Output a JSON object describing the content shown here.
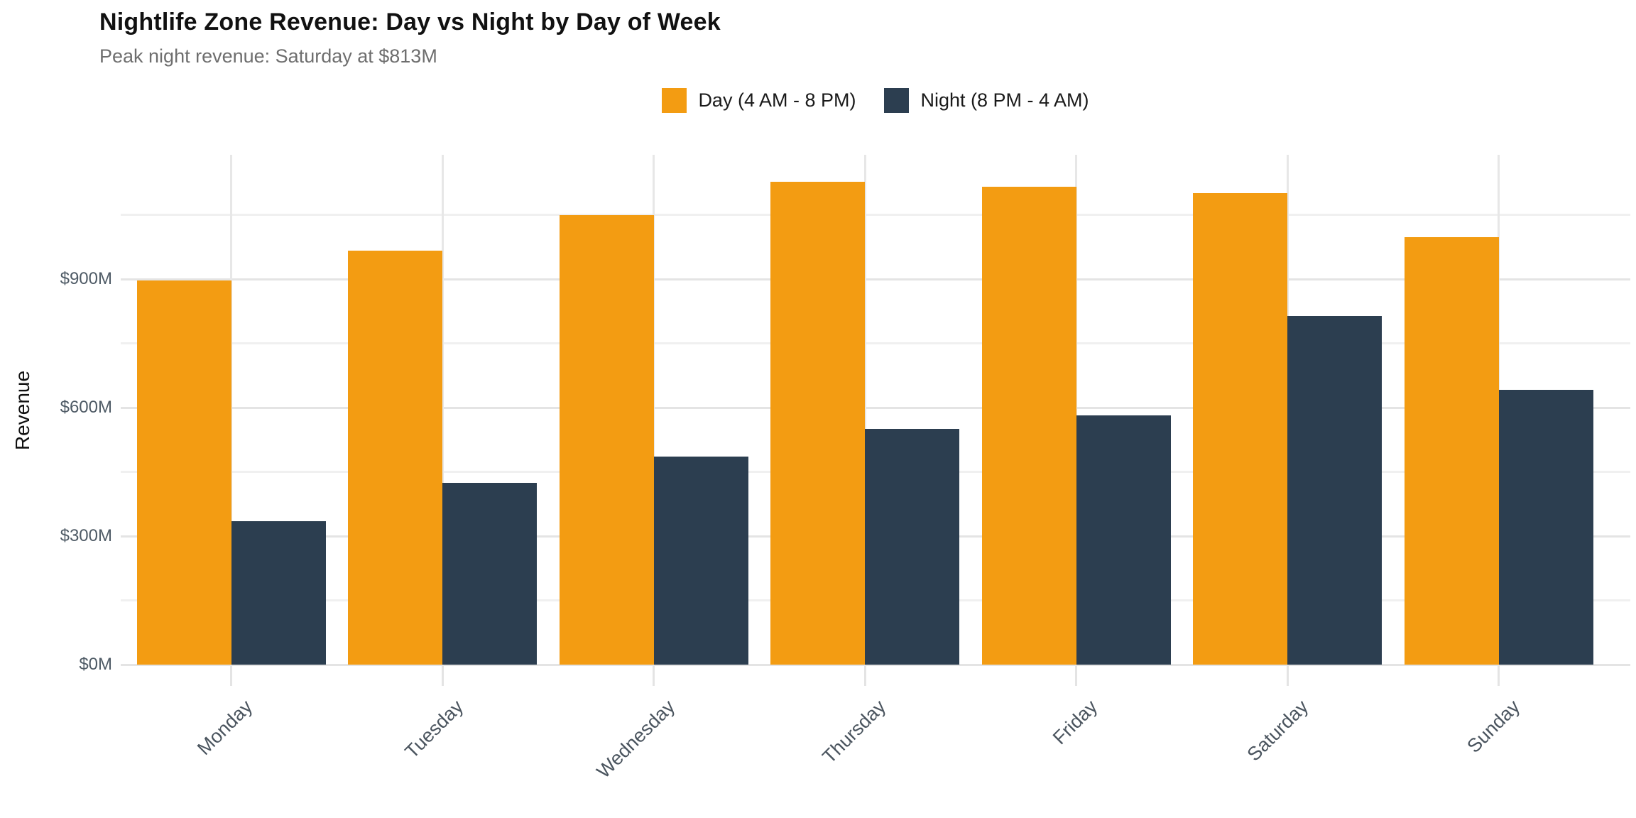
{
  "header": {
    "title": "Nightlife Zone Revenue: Day vs Night by Day of Week",
    "subtitle": "Peak night revenue: Saturday at $813M"
  },
  "chart_data": {
    "type": "bar",
    "grouping": "dodged",
    "title": "Nightlife Zone Revenue: Day vs Night by Day of Week",
    "subtitle": "Peak night revenue: Saturday at $813M",
    "categories": [
      "Monday",
      "Tuesday",
      "Wednesday",
      "Thursday",
      "Friday",
      "Saturday",
      "Sunday"
    ],
    "series": [
      {
        "name": "Day (4 AM - 8 PM)",
        "color": "#F39C12",
        "values": [
          896,
          966,
          1049,
          1127,
          1115,
          1100,
          997
        ]
      },
      {
        "name": "Night (8 PM - 4 AM)",
        "color": "#2C3E50",
        "values": [
          334,
          425,
          486,
          550,
          582,
          813,
          642
        ]
      }
    ],
    "value_unit": "million USD",
    "xlabel": "",
    "ylabel": "Revenue",
    "ylim": [
      0,
      1190
    ],
    "y_ticks": [
      {
        "value": 0,
        "label": "$0M"
      },
      {
        "value": 300,
        "label": "$300M"
      },
      {
        "value": 600,
        "label": "$600M"
      },
      {
        "value": 900,
        "label": "$900M"
      }
    ],
    "y_minor_ticks": [
      150,
      450,
      750,
      1050
    ],
    "legend_position": "top-center",
    "grid": true,
    "annotated_peak": {
      "category": "Saturday",
      "series": "Night (8 PM - 4 AM)",
      "value_label": "$813M"
    }
  },
  "colors": {
    "background": "#FFFFFF",
    "day_series": "#F39C12",
    "night_series": "#2C3E50",
    "grid_major": "#E4E4E4",
    "grid_minor": "#F0F0F0",
    "tick_text": "#4E5A65",
    "subtitle_text": "#6E6E6E",
    "title_text": "#111111"
  }
}
